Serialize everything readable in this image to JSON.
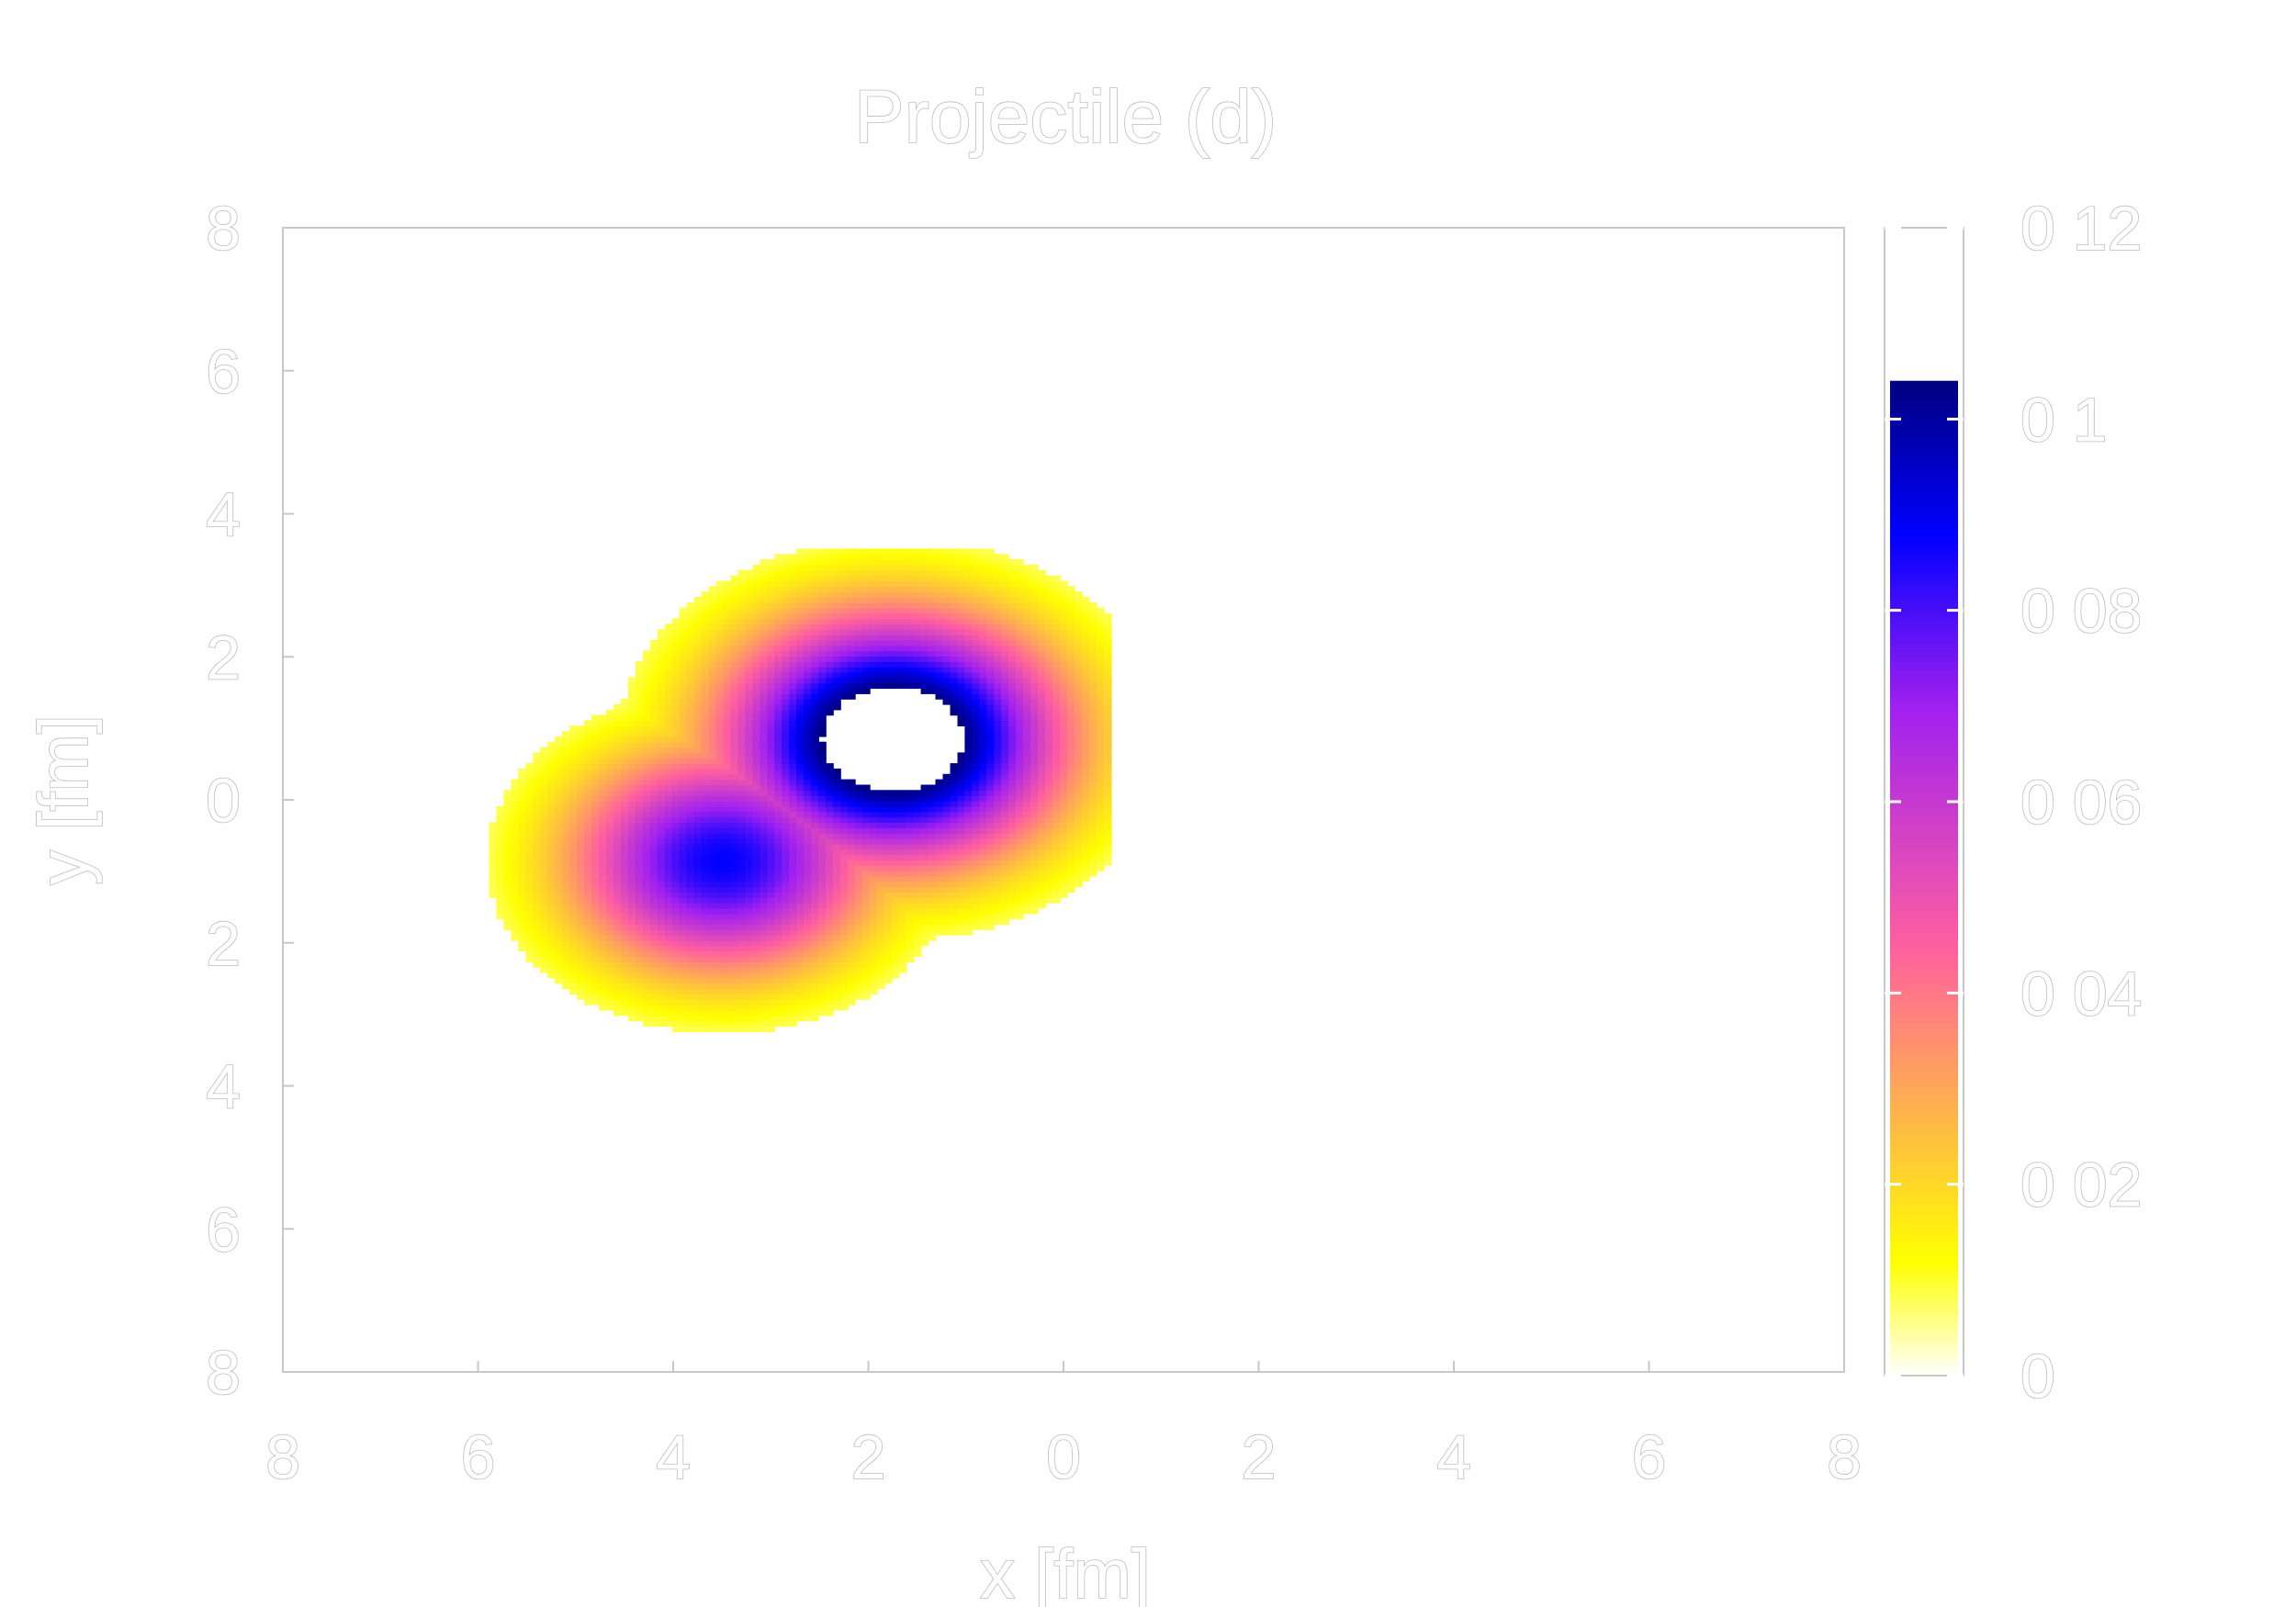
{
  "chart_data": {
    "type": "heatmap",
    "title": "Projectile (d)",
    "xlabel": "x [fm]",
    "ylabel": "y [fm]",
    "xlim": [
      -8,
      8
    ],
    "ylim": [
      -8,
      8
    ],
    "x_ticks": [
      "8",
      "6",
      "4",
      "2",
      "0",
      "2",
      "4",
      "6",
      "8"
    ],
    "x_tick_values": [
      -8,
      -6,
      -4,
      -2,
      0,
      2,
      4,
      6,
      8
    ],
    "y_ticks": [
      "8",
      "6",
      "4",
      "2",
      "0",
      "2",
      "4",
      "6",
      "8"
    ],
    "y_tick_values": [
      8,
      6,
      4,
      2,
      0,
      -2,
      -4,
      -6,
      -8
    ],
    "colorbar": {
      "range": [
        0,
        0.12
      ],
      "tick_labels": [
        "0 12",
        "0 1",
        "0 08",
        "0 06",
        "0 04",
        "0 02",
        "0"
      ],
      "tick_values": [
        0.12,
        0.1,
        0.08,
        0.06,
        0.04,
        0.02,
        0
      ],
      "colors": [
        "#ffffff",
        "#ffff00",
        "#ff5fa0",
        "#a020f0",
        "#0000ff",
        "#000080"
      ]
    },
    "grid": false,
    "threshold_min": 0.008,
    "blobs": [
      {
        "cx": -1.75,
        "cy": 0.85,
        "peak": 0.125,
        "sigma": 1.2
      },
      {
        "cx": -3.5,
        "cy": -0.85,
        "peak": 0.088,
        "sigma": 1.1
      }
    ]
  }
}
